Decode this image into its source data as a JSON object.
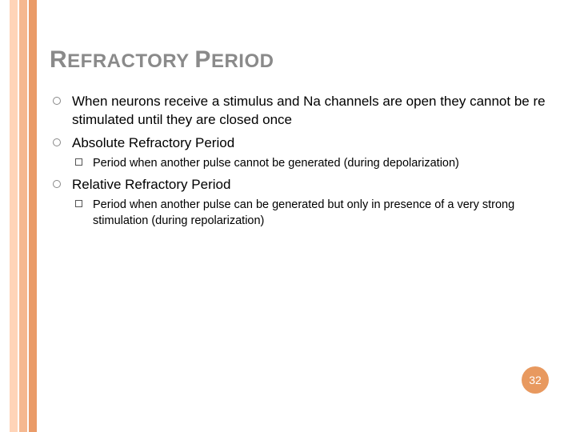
{
  "title_word1_cap": "R",
  "title_word1_rest": "EFRACTORY",
  "title_word2_cap": "P",
  "title_word2_rest": "ERIOD",
  "bullets": {
    "b0": "When neurons receive a stimulus and Na channels are open they cannot be re stimulated until they are closed once",
    "b1": "Absolute Refractory Period",
    "b1_sub0": "Period when another pulse cannot be generated (during depolarization)",
    "b2": "Relative Refractory Period",
    "b2_sub0": "Period when another pulse can be generated but only in presence of a very strong stimulation (during repolarization)"
  },
  "page_number": "32",
  "colors": {
    "stripe1": "#ffd4b8",
    "stripe2": "#f5b890",
    "stripe3": "#ea9b68",
    "title_color": "#8a8a8a",
    "badge_bg": "#e8995f"
  }
}
